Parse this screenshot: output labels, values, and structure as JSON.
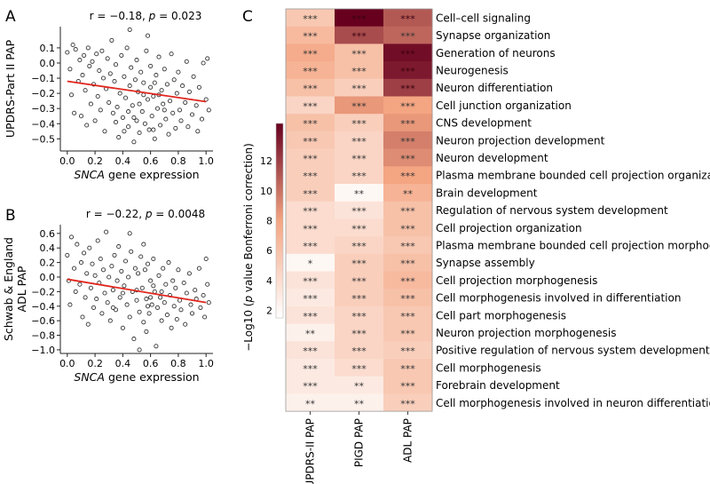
{
  "chart_data": [
    {
      "panel": "A",
      "type": "scatter",
      "title_r": "r = −0.18, ",
      "title_p_symbol": "p",
      "title_p": " = 0.023",
      "xlabel_italic": "SNCA",
      "xlabel_rest": " gene expression",
      "ylabel_lines": [
        "UPDRS-Part II PAP"
      ],
      "xlim": [
        -0.05,
        1.05
      ],
      "ylim": [
        -0.58,
        0.24
      ],
      "xticks": [
        0.0,
        0.2,
        0.4,
        0.6,
        0.8,
        1.0
      ],
      "xtick_labels": [
        "0.0",
        "0.2",
        "0.4",
        "0.6",
        "0.8",
        "1.0"
      ],
      "yticks": [
        0.1,
        0.0,
        -0.1,
        -0.2,
        -0.3,
        -0.4,
        -0.5
      ],
      "ytick_labels": [
        "0.1",
        "0.0",
        "−0.1",
        "−0.2",
        "−0.3",
        "−0.4",
        "−0.5"
      ],
      "fit_line": {
        "x": [
          0.0,
          1.0
        ],
        "y": [
          -0.12,
          -0.255
        ],
        "color": "#e0261d"
      },
      "points": [
        [
          0.0,
          0.07
        ],
        [
          0.02,
          -0.04
        ],
        [
          0.03,
          -0.21
        ],
        [
          0.04,
          0.12
        ],
        [
          0.05,
          -0.33
        ],
        [
          0.06,
          0.09
        ],
        [
          0.08,
          -0.12
        ],
        [
          0.09,
          0.02
        ],
        [
          0.1,
          -0.35
        ],
        [
          0.11,
          -0.08
        ],
        [
          0.12,
          0.05
        ],
        [
          0.13,
          -0.18
        ],
        [
          0.14,
          -0.41
        ],
        [
          0.15,
          0.1
        ],
        [
          0.16,
          -0.02
        ],
        [
          0.17,
          -0.27
        ],
        [
          0.18,
          0.01
        ],
        [
          0.19,
          -0.14
        ],
        [
          0.2,
          -0.38
        ],
        [
          0.21,
          0.06
        ],
        [
          0.22,
          -0.22
        ],
        [
          0.23,
          -0.05
        ],
        [
          0.24,
          -0.31
        ],
        [
          0.25,
          0.08
        ],
        [
          0.26,
          -0.1
        ],
        [
          0.27,
          -0.45
        ],
        [
          0.28,
          -0.17
        ],
        [
          0.29,
          0.03
        ],
        [
          0.3,
          -0.26
        ],
        [
          0.31,
          -0.07
        ],
        [
          0.32,
          0.15
        ],
        [
          0.33,
          -0.33
        ],
        [
          0.34,
          -0.12
        ],
        [
          0.35,
          -0.01
        ],
        [
          0.36,
          -0.29
        ],
        [
          0.37,
          -0.49
        ],
        [
          0.38,
          -0.2
        ],
        [
          0.39,
          0.05
        ],
        [
          0.4,
          -0.36
        ],
        [
          0.41,
          -0.09
        ],
        [
          0.42,
          -0.23
        ],
        [
          0.43,
          0.1
        ],
        [
          0.44,
          -0.42
        ],
        [
          0.45,
          -0.15
        ],
        [
          0.46,
          -0.03
        ],
        [
          0.47,
          -0.28
        ],
        [
          0.48,
          -0.52
        ],
        [
          0.49,
          -0.11
        ],
        [
          0.5,
          -0.38
        ],
        [
          0.5,
          0.02
        ],
        [
          0.51,
          -0.19
        ],
        [
          0.52,
          -0.46
        ],
        [
          0.53,
          -0.06
        ],
        [
          0.54,
          -0.32
        ],
        [
          0.55,
          -0.13
        ],
        [
          0.56,
          -0.4
        ],
        [
          0.57,
          0.08
        ],
        [
          0.58,
          -0.24
        ],
        [
          0.59,
          -0.44
        ],
        [
          0.6,
          -0.16
        ],
        [
          0.6,
          -0.02
        ],
        [
          0.61,
          -0.35
        ],
        [
          0.62,
          -0.22
        ],
        [
          0.63,
          -0.5
        ],
        [
          0.64,
          -0.08
        ],
        [
          0.65,
          -0.3
        ],
        [
          0.66,
          0.04
        ],
        [
          0.67,
          -0.41
        ],
        [
          0.68,
          -0.18
        ],
        [
          0.69,
          -0.27
        ],
        [
          0.7,
          -0.04
        ],
        [
          0.71,
          -0.37
        ],
        [
          0.72,
          -0.14
        ],
        [
          0.73,
          -0.47
        ],
        [
          0.74,
          -0.25
        ],
        [
          0.75,
          0.06
        ],
        [
          0.76,
          -0.33
        ],
        [
          0.77,
          -0.11
        ],
        [
          0.78,
          -0.43
        ],
        [
          0.79,
          -0.2
        ],
        [
          0.8,
          -0.06
        ],
        [
          0.81,
          -0.31
        ],
        [
          0.82,
          -0.38
        ],
        [
          0.83,
          -0.15
        ],
        [
          0.85,
          -0.26
        ],
        [
          0.86,
          0.01
        ],
        [
          0.87,
          -0.42
        ],
        [
          0.88,
          -0.19
        ],
        [
          0.9,
          -0.34
        ],
        [
          0.91,
          -0.09
        ],
        [
          0.93,
          -0.28
        ],
        [
          0.94,
          -0.45
        ],
        [
          0.95,
          -0.16
        ],
        [
          0.97,
          -0.37
        ],
        [
          0.98,
          0.0
        ],
        [
          1.0,
          -0.24
        ],
        [
          1.01,
          0.03
        ],
        [
          1.02,
          -0.31
        ],
        [
          0.45,
          0.22
        ],
        [
          0.58,
          0.18
        ],
        [
          0.35,
          -0.39
        ],
        [
          0.44,
          -0.32
        ],
        [
          0.52,
          -0.27
        ],
        [
          0.62,
          -0.44
        ],
        [
          0.66,
          -0.21
        ],
        [
          0.7,
          -0.31
        ],
        [
          0.48,
          -0.36
        ],
        [
          0.55,
          -0.21
        ],
        [
          0.41,
          -0.45
        ],
        [
          0.63,
          -0.13
        ]
      ]
    },
    {
      "panel": "B",
      "type": "scatter",
      "title_r": "r = −0.22, ",
      "title_p_symbol": "p",
      "title_p": " = 0.0048",
      "xlabel_italic": "SNCA",
      "xlabel_rest": " gene expression",
      "ylabel_lines": [
        "Schwab & England",
        "ADL PAP"
      ],
      "xlim": [
        -0.05,
        1.05
      ],
      "ylim": [
        -1.05,
        0.72
      ],
      "xticks": [
        0.0,
        0.2,
        0.4,
        0.6,
        0.8,
        1.0
      ],
      "xtick_labels": [
        "0.0",
        "0.2",
        "0.4",
        "0.6",
        "0.8",
        "1.0"
      ],
      "yticks": [
        0.6,
        0.4,
        0.2,
        0.0,
        -0.2,
        -0.4,
        -0.6,
        -0.8,
        -1.0
      ],
      "ytick_labels": [
        "0.6",
        "0.4",
        "0.2",
        "0.0",
        "−0.2",
        "−0.4",
        "−0.6",
        "−0.8",
        "−1.0"
      ],
      "fit_line": {
        "x": [
          0.0,
          1.0
        ],
        "y": [
          -0.03,
          -0.35
        ],
        "color": "#e0261d"
      },
      "points": [
        [
          0.0,
          0.3
        ],
        [
          0.01,
          -0.05
        ],
        [
          0.02,
          -0.38
        ],
        [
          0.03,
          0.55
        ],
        [
          0.05,
          0.12
        ],
        [
          0.06,
          -0.2
        ],
        [
          0.07,
          0.45
        ],
        [
          0.09,
          -0.1
        ],
        [
          0.1,
          0.2
        ],
        [
          0.11,
          -0.55
        ],
        [
          0.12,
          0.33
        ],
        [
          0.13,
          -0.28
        ],
        [
          0.14,
          0.05
        ],
        [
          0.15,
          -0.65
        ],
        [
          0.16,
          0.4
        ],
        [
          0.17,
          -0.15
        ],
        [
          0.18,
          0.18
        ],
        [
          0.19,
          -0.42
        ],
        [
          0.2,
          0.02
        ],
        [
          0.21,
          -0.3
        ],
        [
          0.22,
          0.5
        ],
        [
          0.23,
          -0.08
        ],
        [
          0.24,
          0.25
        ],
        [
          0.25,
          -0.5
        ],
        [
          0.26,
          0.1
        ],
        [
          0.27,
          -0.22
        ],
        [
          0.28,
          0.62
        ],
        [
          0.29,
          -0.35
        ],
        [
          0.3,
          0.0
        ],
        [
          0.31,
          -0.6
        ],
        [
          0.32,
          0.15
        ],
        [
          0.33,
          -0.18
        ],
        [
          0.34,
          0.3
        ],
        [
          0.35,
          -0.45
        ],
        [
          0.36,
          -0.05
        ],
        [
          0.37,
          0.42
        ],
        [
          0.38,
          -0.28
        ],
        [
          0.39,
          0.08
        ],
        [
          0.4,
          -0.7
        ],
        [
          0.41,
          -0.12
        ],
        [
          0.42,
          0.22
        ],
        [
          0.43,
          -0.38
        ],
        [
          0.44,
          0.0
        ],
        [
          0.45,
          -0.55
        ],
        [
          0.46,
          0.35
        ],
        [
          0.47,
          -0.2
        ],
        [
          0.48,
          -0.85
        ],
        [
          0.49,
          0.12
        ],
        [
          0.5,
          -0.32
        ],
        [
          0.51,
          0.05
        ],
        [
          0.52,
          -0.48
        ],
        [
          0.53,
          0.28
        ],
        [
          0.54,
          -0.15
        ],
        [
          0.55,
          -0.62
        ],
        [
          0.56,
          0.1
        ],
        [
          0.57,
          -0.3
        ],
        [
          0.58,
          0.18
        ],
        [
          0.59,
          -0.5
        ],
        [
          0.6,
          -0.05
        ],
        [
          0.61,
          -0.38
        ],
        [
          0.62,
          0.25
        ],
        [
          0.63,
          -0.2
        ],
        [
          0.64,
          -0.95
        ],
        [
          0.65,
          -0.42
        ],
        [
          0.66,
          0.02
        ],
        [
          0.67,
          -0.28
        ],
        [
          0.68,
          -0.6
        ],
        [
          0.69,
          0.12
        ],
        [
          0.7,
          -0.35
        ],
        [
          0.71,
          -0.1
        ],
        [
          0.72,
          -0.52
        ],
        [
          0.73,
          0.2
        ],
        [
          0.74,
          -0.25
        ],
        [
          0.75,
          -0.7
        ],
        [
          0.76,
          -0.05
        ],
        [
          0.77,
          -0.4
        ],
        [
          0.78,
          -0.15
        ],
        [
          0.79,
          -0.58
        ],
        [
          0.8,
          0.1
        ],
        [
          0.81,
          -0.32
        ],
        [
          0.82,
          -0.45
        ],
        [
          0.84,
          -0.08
        ],
        [
          0.85,
          -0.65
        ],
        [
          0.86,
          -0.22
        ],
        [
          0.88,
          0.05
        ],
        [
          0.89,
          -0.38
        ],
        [
          0.9,
          -0.5
        ],
        [
          0.92,
          -0.18
        ],
        [
          0.93,
          -0.3
        ],
        [
          0.95,
          0.12
        ],
        [
          0.96,
          -0.42
        ],
        [
          0.98,
          -0.25
        ],
        [
          0.99,
          -0.55
        ],
        [
          1.0,
          0.25
        ],
        [
          1.01,
          -0.1
        ],
        [
          1.02,
          -0.35
        ],
        [
          0.45,
          0.6
        ],
        [
          0.55,
          0.45
        ],
        [
          0.4,
          -0.22
        ],
        [
          0.5,
          -0.18
        ],
        [
          0.6,
          -0.28
        ],
        [
          0.33,
          -0.42
        ],
        [
          0.58,
          -0.4
        ],
        [
          0.62,
          -0.12
        ],
        [
          0.68,
          -0.2
        ],
        [
          0.52,
          -1.0
        ],
        [
          0.57,
          -0.75
        ]
      ]
    },
    {
      "panel": "C",
      "type": "heatmap",
      "columns": [
        "UPDRS-II PAP",
        "PIGD PAP",
        "ADL PAP"
      ],
      "rows": [
        "Cell–cell signaling",
        "Synapse organization",
        "Generation of neurons",
        "Neurogenesis",
        "Neuron differentiation",
        "Cell junction organization",
        "CNS development",
        "Neuron projection development",
        "Neuron development",
        "Plasma membrane bounded cell projection organization",
        "Brain development",
        "Regulation of nervous system development",
        "Cell projection organization",
        "Plasma membrane bounded cell projection morphogenesis",
        "Synapse assembly",
        "Cell projection morphogenesis",
        "Cell morphogenesis involved in differentiation",
        "Cell part morphogenesis",
        "Neuron projection morphogenesis",
        "Positive regulation of nervous system development",
        "Cell morphogenesis",
        "Forebrain development",
        "Cell morphogenesis involved in neuron differentiation"
      ],
      "values": [
        [
          5.5,
          14.5,
          11.0
        ],
        [
          6.5,
          11.5,
          10.5
        ],
        [
          7.5,
          6.0,
          14.0
        ],
        [
          7.0,
          6.0,
          13.5
        ],
        [
          6.0,
          5.0,
          12.0
        ],
        [
          4.5,
          8.5,
          8.0
        ],
        [
          6.0,
          5.0,
          8.5
        ],
        [
          5.5,
          4.5,
          9.5
        ],
        [
          5.0,
          4.5,
          9.0
        ],
        [
          5.0,
          4.5,
          8.0
        ],
        [
          5.0,
          2.0,
          7.0
        ],
        [
          4.0,
          3.5,
          6.0
        ],
        [
          4.0,
          4.0,
          6.0
        ],
        [
          4.0,
          4.5,
          5.5
        ],
        [
          2.0,
          5.0,
          6.0
        ],
        [
          3.5,
          5.0,
          6.5
        ],
        [
          3.0,
          5.0,
          6.0
        ],
        [
          3.5,
          4.5,
          5.5
        ],
        [
          2.5,
          4.5,
          5.5
        ],
        [
          3.5,
          4.5,
          5.0
        ],
        [
          3.0,
          4.0,
          5.5
        ],
        [
          3.0,
          3.0,
          5.5
        ],
        [
          2.5,
          2.5,
          5.0
        ]
      ],
      "stars": [
        [
          "***",
          "***",
          "***"
        ],
        [
          "***",
          "***",
          "***"
        ],
        [
          "***",
          "***",
          "***"
        ],
        [
          "***",
          "***",
          "***"
        ],
        [
          "***",
          "***",
          "***"
        ],
        [
          "***",
          "***",
          "***"
        ],
        [
          "***",
          "***",
          "***"
        ],
        [
          "***",
          "***",
          "***"
        ],
        [
          "***",
          "***",
          "***"
        ],
        [
          "***",
          "***",
          "***"
        ],
        [
          "***",
          "**",
          "**"
        ],
        [
          "***",
          "***",
          "***"
        ],
        [
          "***",
          "***",
          "***"
        ],
        [
          "***",
          "***",
          "***"
        ],
        [
          "*",
          "***",
          "***"
        ],
        [
          "***",
          "***",
          "***"
        ],
        [
          "***",
          "***",
          "***"
        ],
        [
          "***",
          "***",
          "***"
        ],
        [
          "**",
          "***",
          "***"
        ],
        [
          "***",
          "***",
          "***"
        ],
        [
          "***",
          "***",
          "***"
        ],
        [
          "***",
          "**",
          "***"
        ],
        [
          "**",
          "**",
          "***"
        ]
      ],
      "colorbar": {
        "ticks": [
          2,
          4,
          6,
          8,
          10,
          12
        ],
        "tick_labels": [
          "2",
          "4",
          "6",
          "8",
          "10",
          "12"
        ],
        "range": [
          1.5,
          14.5
        ],
        "label_pre": "−Log10 (",
        "label_italic": "p",
        "label_post": " value Bonferroni correction)",
        "color_low": "#ffffff",
        "color_mid": "#f4a582",
        "color_high": "#67001f"
      }
    }
  ],
  "panel_letters": [
    "A",
    "B",
    "C"
  ]
}
